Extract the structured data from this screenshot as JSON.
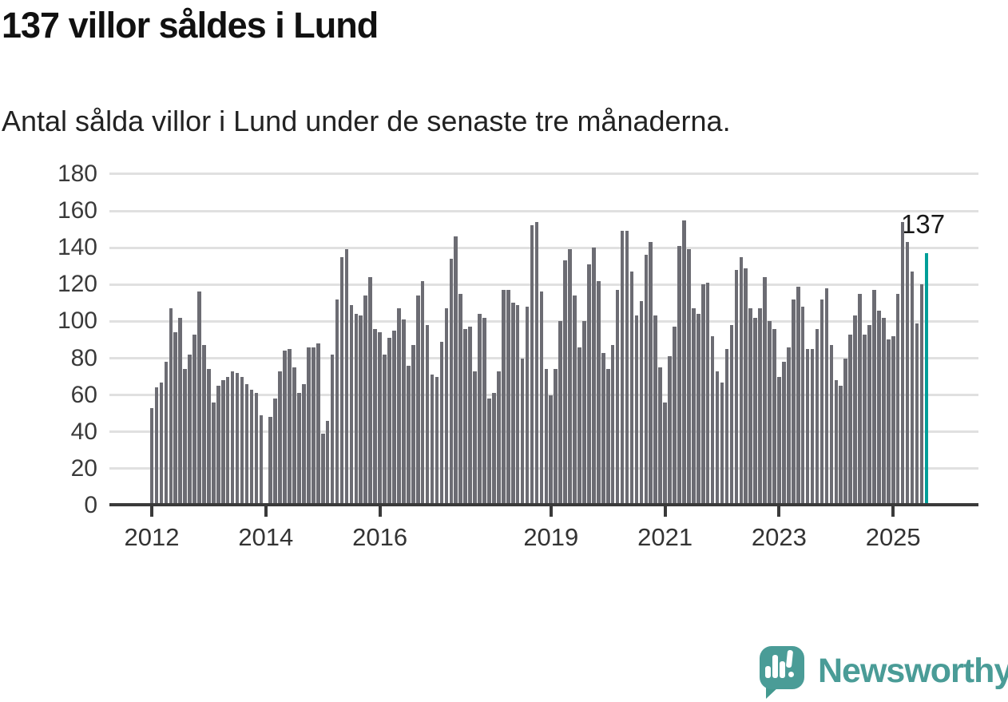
{
  "header": {
    "title": "137 villor såldes i Lund",
    "subtitle": "Antal sålda villor i Lund under de senaste tre månaderna."
  },
  "chart_data": {
    "type": "bar",
    "title": "137 villor såldes i Lund",
    "subtitle": "Antal sålda villor i Lund under de senaste tre månaderna.",
    "x_unit": "month",
    "x_start": "2012-01",
    "x_end": "2025-08",
    "ylim": [
      0,
      180
    ],
    "grid": true,
    "legend": "none",
    "y_ticks": [
      0,
      20,
      40,
      60,
      80,
      100,
      120,
      140,
      160,
      180
    ],
    "x_ticks": [
      {
        "label": "2012",
        "month_index": 0
      },
      {
        "label": "2014",
        "month_index": 24
      },
      {
        "label": "2016",
        "month_index": 48
      },
      {
        "label": "2019",
        "month_index": 84
      },
      {
        "label": "2021",
        "month_index": 108
      },
      {
        "label": "2023",
        "month_index": 132
      },
      {
        "label": "2025",
        "month_index": 156
      }
    ],
    "bar_color": "#6C6C73",
    "highlight_color": "#009E98",
    "annotation_label": "137",
    "highlight_index": 163,
    "values": [
      53,
      64,
      67,
      78,
      107,
      94,
      102,
      74,
      82,
      93,
      116,
      87,
      74,
      56,
      65,
      68,
      70,
      73,
      72,
      70,
      66,
      63,
      61,
      49,
      0,
      48,
      58,
      73,
      84,
      85,
      75,
      61,
      66,
      86,
      86,
      88,
      39,
      46,
      82,
      112,
      135,
      139,
      109,
      104,
      103,
      114,
      124,
      96,
      94,
      82,
      91,
      95,
      107,
      101,
      76,
      87,
      114,
      122,
      98,
      71,
      70,
      89,
      107,
      134,
      146,
      115,
      96,
      97,
      73,
      104,
      102,
      58,
      61,
      73,
      117,
      117,
      110,
      109,
      80,
      108,
      152,
      154,
      116,
      74,
      60,
      74,
      100,
      133,
      139,
      114,
      86,
      100,
      131,
      140,
      122,
      83,
      74,
      87,
      117,
      149,
      149,
      127,
      103,
      111,
      136,
      143,
      103,
      75,
      56,
      81,
      97,
      141,
      155,
      139,
      107,
      104,
      120,
      121,
      92,
      73,
      67,
      85,
      98,
      128,
      135,
      129,
      107,
      102,
      107,
      124,
      100,
      96,
      70,
      78,
      86,
      112,
      119,
      108,
      85,
      85,
      96,
      112,
      118,
      87,
      68,
      65,
      80,
      93,
      103,
      115,
      93,
      98,
      117,
      106,
      102,
      90,
      92,
      115,
      154,
      143,
      127,
      99,
      120,
      137
    ]
  },
  "branding": {
    "name": "Newsworthy",
    "logo_color": "#4A9C97",
    "logo_icon": "speech-bubble-bar-chart-exclamation"
  }
}
